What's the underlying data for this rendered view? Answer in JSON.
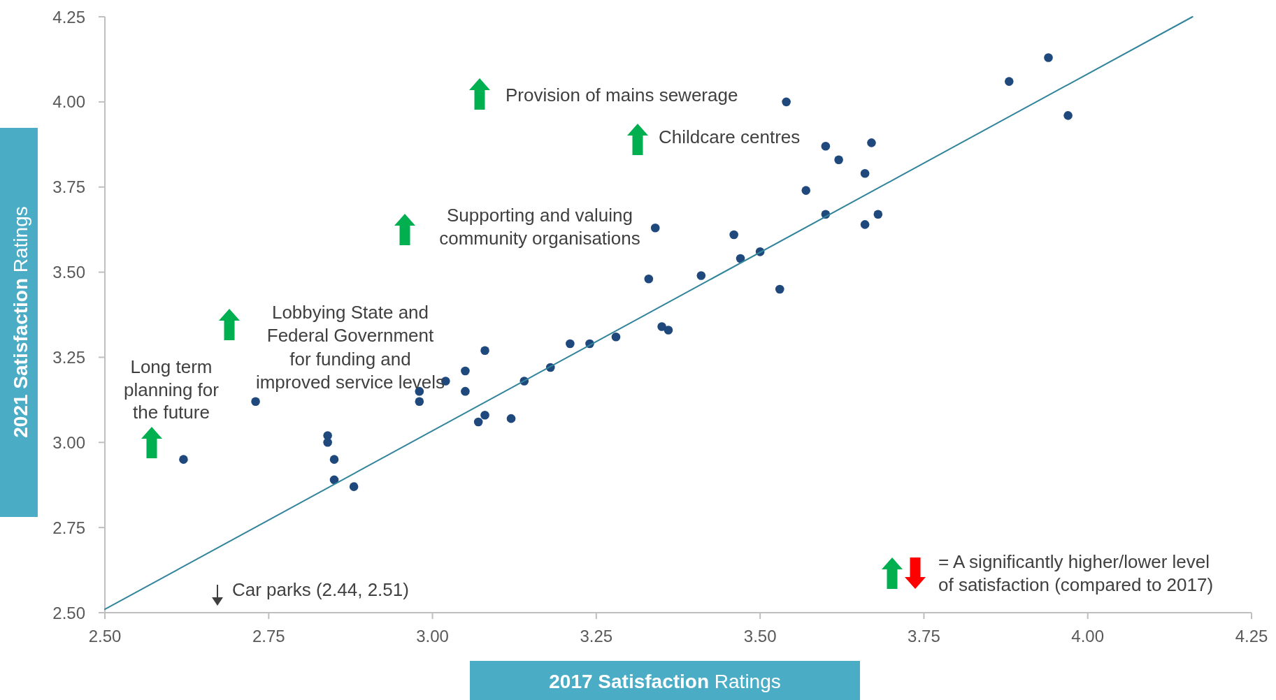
{
  "chart_data": {
    "type": "scatter",
    "xlabel": "2017 Satisfaction Ratings",
    "ylabel": "2021 Satisfaction Ratings",
    "annotations": [
      "Provision of mains sewerage",
      "Childcare centres",
      "Supporting and valuing\ncommunity organisations",
      "Lobbying State and\nFederal Government\nfor funding and\nimproved service levels",
      "Long term\nplanning for\nthe future",
      "Car parks (2.44, 2.51)",
      "= A significantly higher/lower level\nof satisfaction (compared to 2017)"
    ],
    "series": [
      {
        "color": "#1f497d",
        "marker": "circle",
        "x": [
          2.62,
          2.73,
          2.84,
          2.84,
          2.85,
          2.85,
          2.88,
          2.98,
          2.98,
          3.02,
          3.05,
          3.05,
          3.08,
          3.08,
          3.07,
          3.12,
          3.14,
          3.18,
          3.21,
          3.24,
          3.28,
          3.35,
          3.36,
          3.54,
          3.6,
          3.67,
          3.62,
          3.66,
          3.57,
          3.6,
          3.68,
          3.66,
          3.34,
          3.46,
          3.47,
          3.5,
          3.33,
          3.41,
          3.53,
          3.88,
          3.94,
          3.97
        ],
        "values": [
          2.95,
          3.12,
          3.02,
          3.0,
          2.95,
          2.89,
          2.87,
          3.15,
          3.12,
          3.18,
          3.15,
          3.21,
          3.27,
          3.08,
          3.06,
          3.07,
          3.18,
          3.22,
          3.29,
          3.29,
          3.31,
          3.34,
          3.33,
          4.0,
          3.87,
          3.88,
          3.83,
          3.79,
          3.74,
          3.67,
          3.67,
          3.64,
          3.63,
          3.61,
          3.54,
          3.56,
          3.48,
          3.49,
          3.45,
          4.06,
          4.13,
          3.96
        ]
      },
      {
        "type": "line",
        "color": "#31849b",
        "x": [
          2.5,
          4.16
        ],
        "values": [
          2.51,
          4.25
        ]
      }
    ],
    "xlim": [
      2.5,
      4.25
    ],
    "ylim": [
      2.5,
      4.25
    ],
    "xticks": [
      {
        "value": 2.5,
        "label": "2.50"
      },
      2.75,
      {
        "value": 3,
        "label": "3.00"
      },
      3.25,
      {
        "value": 3.5,
        "label": "3.50"
      },
      3.75,
      {
        "value": 4,
        "label": "4.00"
      },
      4.25
    ],
    "yticks": [
      {
        "value": 2.5,
        "label": "2.50"
      },
      2.75,
      {
        "value": 3,
        "label": "3.00"
      },
      3.25,
      {
        "value": 3.5,
        "label": "3.50"
      },
      3.75,
      {
        "value": 4,
        "label": "4.00"
      },
      4.25
    ]
  }
}
